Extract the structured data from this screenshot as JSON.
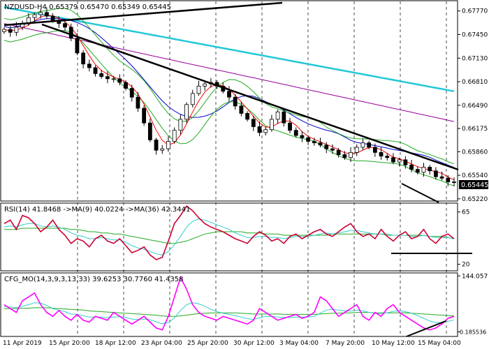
{
  "chart_data": [
    {
      "type": "candlestick",
      "panel": "main",
      "header": "NZDUSD-H4  0.65379 0.65470 0.65349 0.65445",
      "ylim": [
        0.652,
        0.679
      ],
      "y_ticks": [
        "0.67770",
        "0.67450",
        "0.67130",
        "0.66810",
        "0.66490",
        "0.66175",
        "0.65860",
        "0.65540",
        "0.65220"
      ],
      "y_tick_values": [
        0.6777,
        0.6745,
        0.6713,
        0.6681,
        0.6649,
        0.66175,
        0.6586,
        0.6554,
        0.6522
      ],
      "last_price_label": "0.65445",
      "last_price": 0.65445,
      "colors": {
        "candle": "#000000",
        "ma_fast": "#ff0000",
        "ma_mid": "#0000cc",
        "ma_slow": "#990099",
        "ma_long": "#22c8d8",
        "bands": "#22aa22"
      },
      "trendlines_desc": "resistance lines from upper-left; support line at lower-right",
      "price_path": [
        0.6752,
        0.6748,
        0.6755,
        0.676,
        0.6768,
        0.6772,
        0.6775,
        0.677,
        0.6764,
        0.676,
        0.6755,
        0.674,
        0.672,
        0.6705,
        0.67,
        0.6692,
        0.6688,
        0.6685,
        0.6685,
        0.668,
        0.6672,
        0.666,
        0.6645,
        0.6625,
        0.6602,
        0.6588,
        0.659,
        0.66,
        0.6615,
        0.663,
        0.665,
        0.6665,
        0.6675,
        0.6678,
        0.668,
        0.6675,
        0.6668,
        0.666,
        0.6648,
        0.6638,
        0.663,
        0.662,
        0.6612,
        0.6616,
        0.663,
        0.664,
        0.6625,
        0.6615,
        0.6608,
        0.6605,
        0.66,
        0.6598,
        0.6595,
        0.659,
        0.6588,
        0.6582,
        0.6578,
        0.6585,
        0.6592,
        0.6598,
        0.6592,
        0.6585,
        0.658,
        0.6578,
        0.6572,
        0.6575,
        0.6568,
        0.6562,
        0.6558,
        0.6565,
        0.656,
        0.6552,
        0.655,
        0.6545,
        0.6544
      ]
    },
    {
      "type": "line",
      "panel": "rsi",
      "label": "RSI(14) 41.8468 ->MA(9) 40.0224 ->MA(36) 42.3441",
      "ylim": [
        15,
        72
      ],
      "y_ticks": [
        "65",
        "20"
      ],
      "y_tick_values": [
        65,
        20
      ],
      "series": [
        {
          "color": "#cc0033",
          "values": [
            55,
            58,
            50,
            62,
            60,
            55,
            48,
            52,
            58,
            50,
            45,
            38,
            42,
            40,
            35,
            42,
            45,
            40,
            38,
            42,
            36,
            30,
            32,
            35,
            28,
            24,
            26,
            40,
            55,
            62,
            70,
            66,
            60,
            55,
            52,
            50,
            48,
            45,
            42,
            40,
            38,
            44,
            48,
            45,
            40,
            42,
            38,
            44,
            46,
            42,
            45,
            48,
            50,
            46,
            44,
            48,
            52,
            55,
            48,
            44,
            46,
            42,
            50,
            44,
            40,
            45,
            48,
            42,
            44,
            50,
            42,
            38,
            44,
            46,
            42
          ]
        },
        {
          "color": "#33cccc",
          "values": [
            52,
            53,
            52,
            54,
            55,
            55,
            53,
            52,
            53,
            52,
            50,
            47,
            45,
            44,
            42,
            42,
            43,
            42,
            41,
            41,
            39,
            36,
            34,
            33,
            31,
            29,
            28,
            31,
            37,
            44,
            52,
            57,
            59,
            58,
            56,
            54,
            52,
            50,
            47,
            45,
            43,
            43,
            44,
            44,
            43,
            43,
            42,
            43,
            44,
            44,
            44,
            45,
            46,
            47,
            46,
            47,
            48,
            49,
            49,
            48,
            47,
            46,
            46,
            46,
            45,
            45,
            45,
            44,
            44,
            45,
            44,
            43,
            43,
            43,
            42
          ]
        },
        {
          "color": "#22aa22",
          "values": [
            50,
            50,
            50,
            51,
            51,
            51,
            51,
            51,
            51,
            51,
            51,
            50,
            50,
            49,
            48,
            48,
            47,
            47,
            46,
            46,
            45,
            44,
            43,
            42,
            41,
            40,
            39,
            38,
            38,
            39,
            40,
            42,
            44,
            46,
            47,
            48,
            48,
            48,
            48,
            48,
            47,
            47,
            47,
            46,
            46,
            46,
            45,
            45,
            45,
            45,
            45,
            45,
            45,
            45,
            46,
            46,
            46,
            46,
            46,
            46,
            46,
            46,
            46,
            45,
            45,
            45,
            45,
            45,
            45,
            45,
            44,
            44,
            44,
            43,
            42
          ]
        }
      ]
    },
    {
      "type": "line",
      "panel": "cfg",
      "label": "CFG_MO(14,3,9,3,13,33) 39.6253 30.7760 41.4358",
      "ylim": [
        -10,
        150
      ],
      "y_ticks": [
        "144.057",
        "0.185536"
      ],
      "y_tick_values": [
        144.057,
        0.185536
      ],
      "series": [
        {
          "color": "#ff00ff",
          "values": [
            70,
            60,
            50,
            80,
            90,
            100,
            70,
            50,
            40,
            55,
            40,
            30,
            45,
            30,
            25,
            40,
            35,
            30,
            50,
            40,
            30,
            20,
            30,
            40,
            25,
            10,
            5,
            40,
            90,
            140,
            110,
            70,
            50,
            40,
            35,
            30,
            40,
            35,
            30,
            25,
            20,
            30,
            60,
            50,
            40,
            30,
            35,
            40,
            45,
            35,
            40,
            50,
            90,
            80,
            60,
            40,
            50,
            60,
            70,
            40,
            30,
            50,
            40,
            60,
            70,
            50,
            40,
            30,
            20,
            10,
            5,
            10,
            20,
            35,
            40
          ]
        },
        {
          "color": "#33cccc",
          "values": [
            65,
            64,
            62,
            66,
            70,
            75,
            74,
            68,
            60,
            56,
            52,
            46,
            45,
            42,
            38,
            38,
            38,
            36,
            38,
            39,
            37,
            33,
            32,
            33,
            31,
            26,
            21,
            24,
            36,
            55,
            70,
            75,
            72,
            66,
            58,
            52,
            48,
            45,
            42,
            38,
            34,
            32,
            36,
            40,
            40,
            38,
            37,
            37,
            38,
            38,
            38,
            40,
            48,
            56,
            58,
            56,
            54,
            54,
            56,
            54,
            50,
            48,
            47,
            49,
            53,
            54,
            52,
            48,
            42,
            35,
            28,
            24,
            24,
            27,
            31
          ]
        },
        {
          "color": "#22aa22",
          "values": [
            60,
            60,
            60,
            61,
            61,
            62,
            62,
            62,
            61,
            60,
            59,
            58,
            57,
            56,
            54,
            53,
            52,
            51,
            50,
            49,
            48,
            47,
            46,
            45,
            44,
            43,
            41,
            40,
            40,
            41,
            43,
            45,
            47,
            48,
            49,
            49,
            49,
            49,
            49,
            48,
            47,
            46,
            46,
            46,
            46,
            46,
            45,
            45,
            45,
            45,
            45,
            45,
            46,
            47,
            48,
            48,
            49,
            49,
            50,
            50,
            50,
            49,
            49,
            49,
            49,
            49,
            49,
            48,
            47,
            46,
            45,
            44,
            43,
            42,
            41
          ]
        }
      ]
    }
  ],
  "x_labels": [
    "11 Apr 2019",
    "15 Apr 20:00",
    "18 Apr 12:00",
    "23 Apr 04:00",
    "25 Apr 20:00",
    "30 Apr 12:00",
    "3 May 04:00",
    "7 May 20:00",
    "10 May 12:00",
    "15 May 04:00"
  ]
}
